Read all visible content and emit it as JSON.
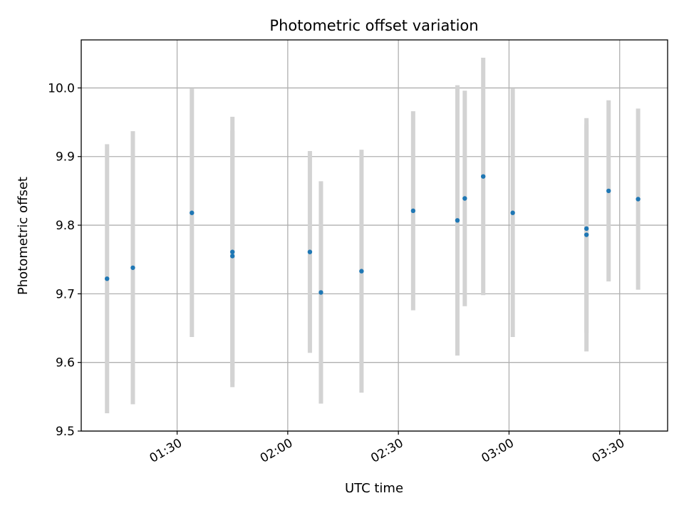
{
  "chart_data": {
    "type": "scatter",
    "title": "Photometric offset variation",
    "xlabel": "UTC time",
    "ylabel": "Photometric offset",
    "xlim": [
      "01:04",
      "03:43"
    ],
    "ylim": [
      9.5,
      10.07
    ],
    "x_ticks": [
      "01:30",
      "02:00",
      "02:30",
      "03:00",
      "03:30"
    ],
    "y_ticks": [
      9.5,
      9.6,
      9.7,
      9.8,
      9.9,
      10.0
    ],
    "grid": true,
    "point_color": "#1f77b4",
    "errorbar_color": "#d3d3d3",
    "series": [
      {
        "points": [
          {
            "x": "01:11",
            "y": 9.722,
            "err": 0.196
          },
          {
            "x": "01:18",
            "y": 9.738,
            "err": 0.199
          },
          {
            "x": "01:34",
            "y": 9.818,
            "err": 0.181
          },
          {
            "x": "01:45",
            "y": 9.761,
            "err": 0.197
          },
          {
            "x": "01:45",
            "y": 9.755,
            "err": 0.183
          },
          {
            "x": "02:06",
            "y": 9.761,
            "err": 0.147
          },
          {
            "x": "02:09",
            "y": 9.702,
            "err": 0.162
          },
          {
            "x": "02:20",
            "y": 9.733,
            "err": 0.177
          },
          {
            "x": "02:34",
            "y": 9.821,
            "err": 0.145
          },
          {
            "x": "02:46",
            "y": 9.807,
            "err": 0.197
          },
          {
            "x": "02:48",
            "y": 9.839,
            "err": 0.157
          },
          {
            "x": "02:53",
            "y": 9.871,
            "err": 0.173
          },
          {
            "x": "03:01",
            "y": 9.818,
            "err": 0.181
          },
          {
            "x": "03:21",
            "y": 9.795,
            "err": 0.152
          },
          {
            "x": "03:21",
            "y": 9.786,
            "err": 0.17
          },
          {
            "x": "03:27",
            "y": 9.85,
            "err": 0.132
          },
          {
            "x": "03:35",
            "y": 9.838,
            "err": 0.132
          }
        ]
      }
    ]
  }
}
